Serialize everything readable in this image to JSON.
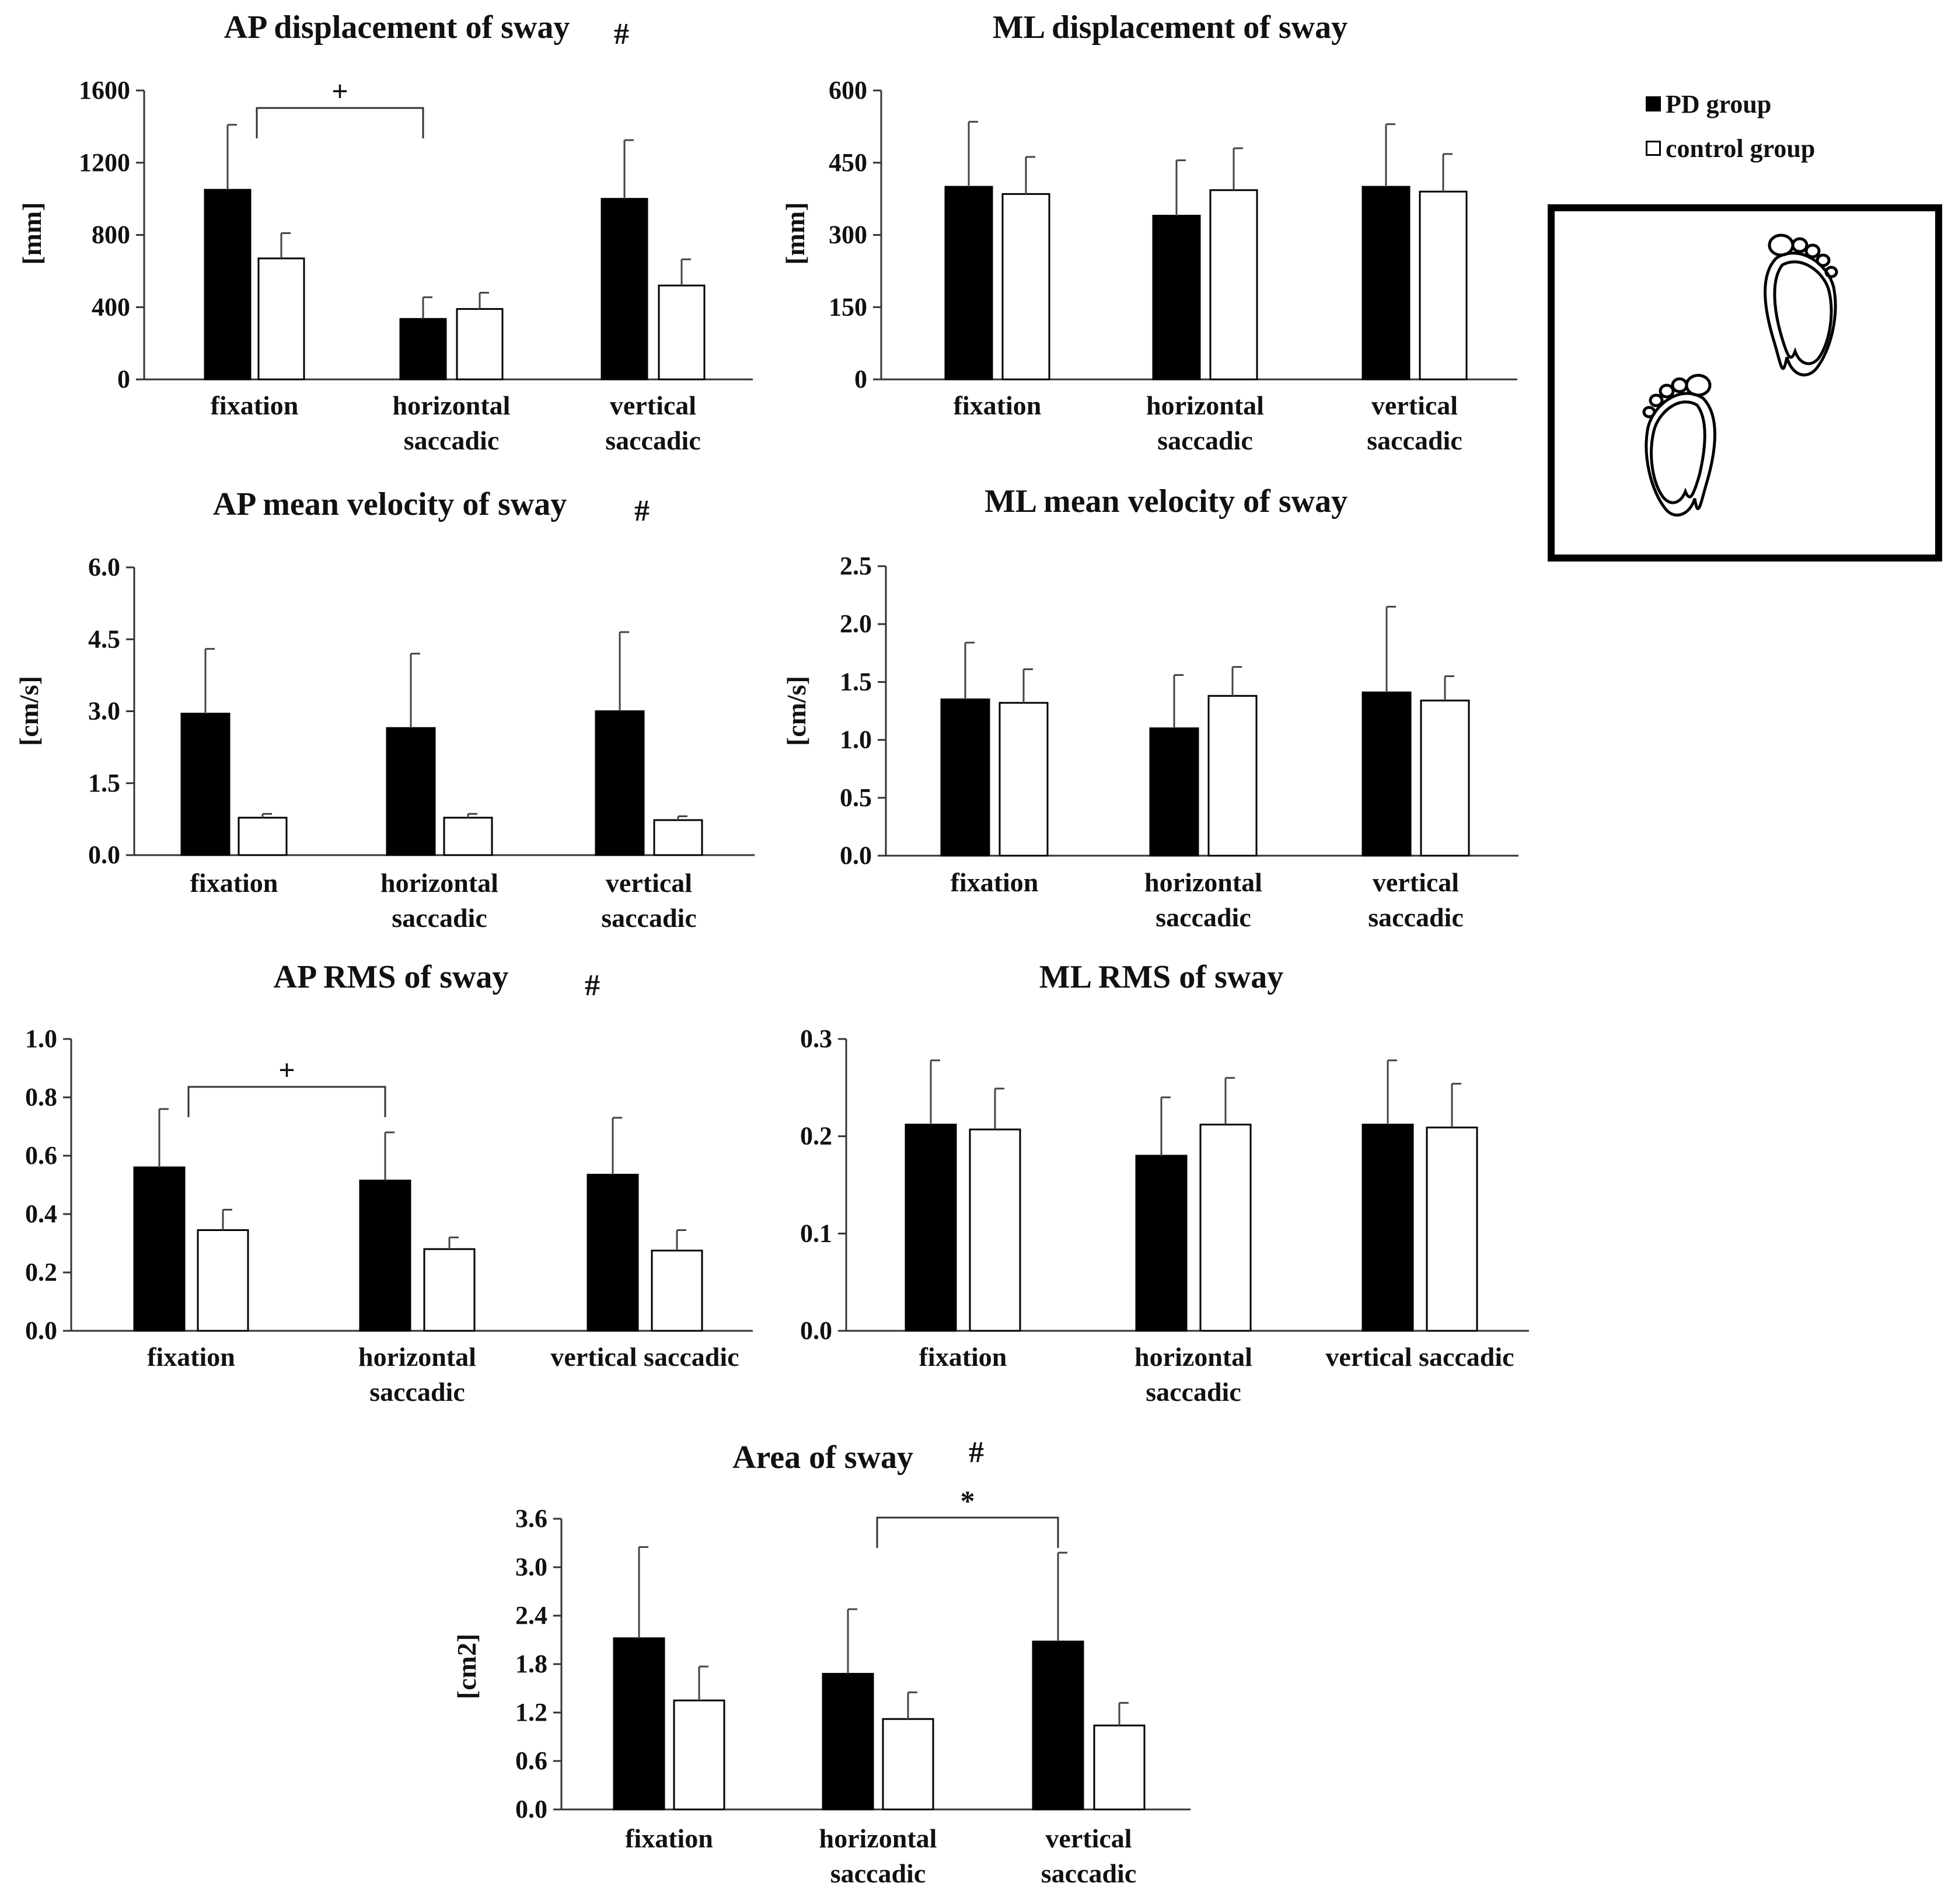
{
  "legend": {
    "pd_label": "PD group",
    "control_label": "control group",
    "pd_color": "#000000",
    "control_color": "#ffffff"
  },
  "illustration": {
    "name": "standing feet"
  },
  "chart_data": [
    {
      "type": "bar",
      "title": "AP displacement of sway",
      "title_mark": "#",
      "ylabel": "[mm]",
      "ylim": [
        0,
        1600
      ],
      "yticks": [
        "0",
        "400",
        "800",
        "1200",
        "1600"
      ],
      "categories": [
        [
          "fixation"
        ],
        [
          "horizontal",
          "saccadic"
        ],
        [
          "vertical",
          "saccadic"
        ]
      ],
      "series": [
        {
          "name": "PD group",
          "values": [
            1050,
            335,
            1000
          ],
          "errors": [
            360,
            120,
            325
          ]
        },
        {
          "name": "control group",
          "values": [
            670,
            390,
            520
          ],
          "errors": [
            140,
            90,
            145
          ]
        }
      ],
      "comparison": {
        "from": 0,
        "to": 1,
        "mark": "+"
      }
    },
    {
      "type": "bar",
      "title": "ML displacement of sway",
      "ylabel": "[mm]",
      "ylim": [
        0,
        600
      ],
      "yticks": [
        "0",
        "150",
        "300",
        "450",
        "600"
      ],
      "categories": [
        [
          "fixation"
        ],
        [
          "horizontal",
          "saccadic"
        ],
        [
          "vertical",
          "saccadic"
        ]
      ],
      "series": [
        {
          "name": "PD group",
          "values": [
            400,
            340,
            400
          ],
          "errors": [
            135,
            115,
            130
          ]
        },
        {
          "name": "control group",
          "values": [
            385,
            393,
            390
          ],
          "errors": [
            77,
            87,
            78
          ]
        }
      ]
    },
    {
      "type": "bar",
      "title": "AP mean velocity of sway",
      "title_mark": "#",
      "ylabel": "[cm/s]",
      "ylim": [
        0,
        6
      ],
      "yticks": [
        "0.0",
        "1.5",
        "3.0",
        "4.5",
        "6.0"
      ],
      "categories": [
        [
          "fixation"
        ],
        [
          "horizontal",
          "saccadic"
        ],
        [
          "vertical",
          "saccadic"
        ]
      ],
      "series": [
        {
          "name": "PD group",
          "values": [
            2.95,
            2.65,
            3.0
          ],
          "errors": [
            1.35,
            1.55,
            1.65
          ]
        },
        {
          "name": "control group",
          "values": [
            0.78,
            0.78,
            0.73
          ],
          "errors": [
            0.08,
            0.08,
            0.08
          ]
        }
      ]
    },
    {
      "type": "bar",
      "title": "ML mean velocity of sway",
      "ylabel": "[cm/s]",
      "ylim": [
        0,
        2.5
      ],
      "yticks": [
        "0.0",
        "0.5",
        "1.0",
        "1.5",
        "2.0",
        "2.5"
      ],
      "categories": [
        [
          "fixation"
        ],
        [
          "horizontal",
          "saccadic"
        ],
        [
          "vertical",
          "saccadic"
        ]
      ],
      "series": [
        {
          "name": "PD group",
          "values": [
            1.35,
            1.1,
            1.41
          ],
          "errors": [
            0.49,
            0.46,
            0.74
          ]
        },
        {
          "name": "control group",
          "values": [
            1.32,
            1.38,
            1.34
          ],
          "errors": [
            0.29,
            0.25,
            0.21
          ]
        }
      ]
    },
    {
      "type": "bar",
      "title": "AP RMS of sway",
      "title_mark": "#",
      "ylabel": "",
      "ylim": [
        0,
        1
      ],
      "yticks": [
        "0.0",
        "0.2",
        "0.4",
        "0.6",
        "0.8",
        "1.0"
      ],
      "categories": [
        [
          "fixation"
        ],
        [
          "horizontal",
          "saccadic"
        ],
        [
          "vertical saccadic"
        ]
      ],
      "series": [
        {
          "name": "PD group",
          "values": [
            0.56,
            0.515,
            0.535
          ],
          "errors": [
            0.2,
            0.165,
            0.195
          ]
        },
        {
          "name": "control group",
          "values": [
            0.345,
            0.28,
            0.275
          ],
          "errors": [
            0.07,
            0.04,
            0.07
          ]
        }
      ],
      "comparison": {
        "from": 0,
        "to": 1,
        "mark": "+"
      }
    },
    {
      "type": "bar",
      "title": "ML RMS of sway",
      "ylabel": "",
      "ylim": [
        0,
        0.3
      ],
      "yticks": [
        "0.0",
        "0.1",
        "0.2",
        "0.3"
      ],
      "categories": [
        [
          "fixation"
        ],
        [
          "horizontal",
          "saccadic"
        ],
        [
          "vertical saccadic"
        ]
      ],
      "series": [
        {
          "name": "PD group",
          "values": [
            0.212,
            0.18,
            0.212
          ],
          "errors": [
            0.066,
            0.06,
            0.066
          ]
        },
        {
          "name": "control group",
          "values": [
            0.207,
            0.212,
            0.209
          ],
          "errors": [
            0.042,
            0.048,
            0.045
          ]
        }
      ]
    },
    {
      "type": "bar",
      "title": "Area of sway",
      "title_mark": "#",
      "ylabel": "[cm2]",
      "ylim": [
        0,
        3.6
      ],
      "yticks": [
        "0.0",
        "0.6",
        "1.2",
        "1.8",
        "2.4",
        "3.0",
        "3.6"
      ],
      "categories": [
        [
          "fixation"
        ],
        [
          "horizontal",
          "saccadic"
        ],
        [
          "vertical",
          "saccadic"
        ]
      ],
      "series": [
        {
          "name": "PD group",
          "values": [
            2.12,
            1.68,
            2.08
          ],
          "errors": [
            1.13,
            0.8,
            1.1
          ]
        },
        {
          "name": "control group",
          "values": [
            1.35,
            1.12,
            1.04
          ],
          "errors": [
            0.42,
            0.33,
            0.28
          ]
        }
      ],
      "comparison": {
        "from": 1,
        "to": 2,
        "mark": "*"
      }
    }
  ]
}
